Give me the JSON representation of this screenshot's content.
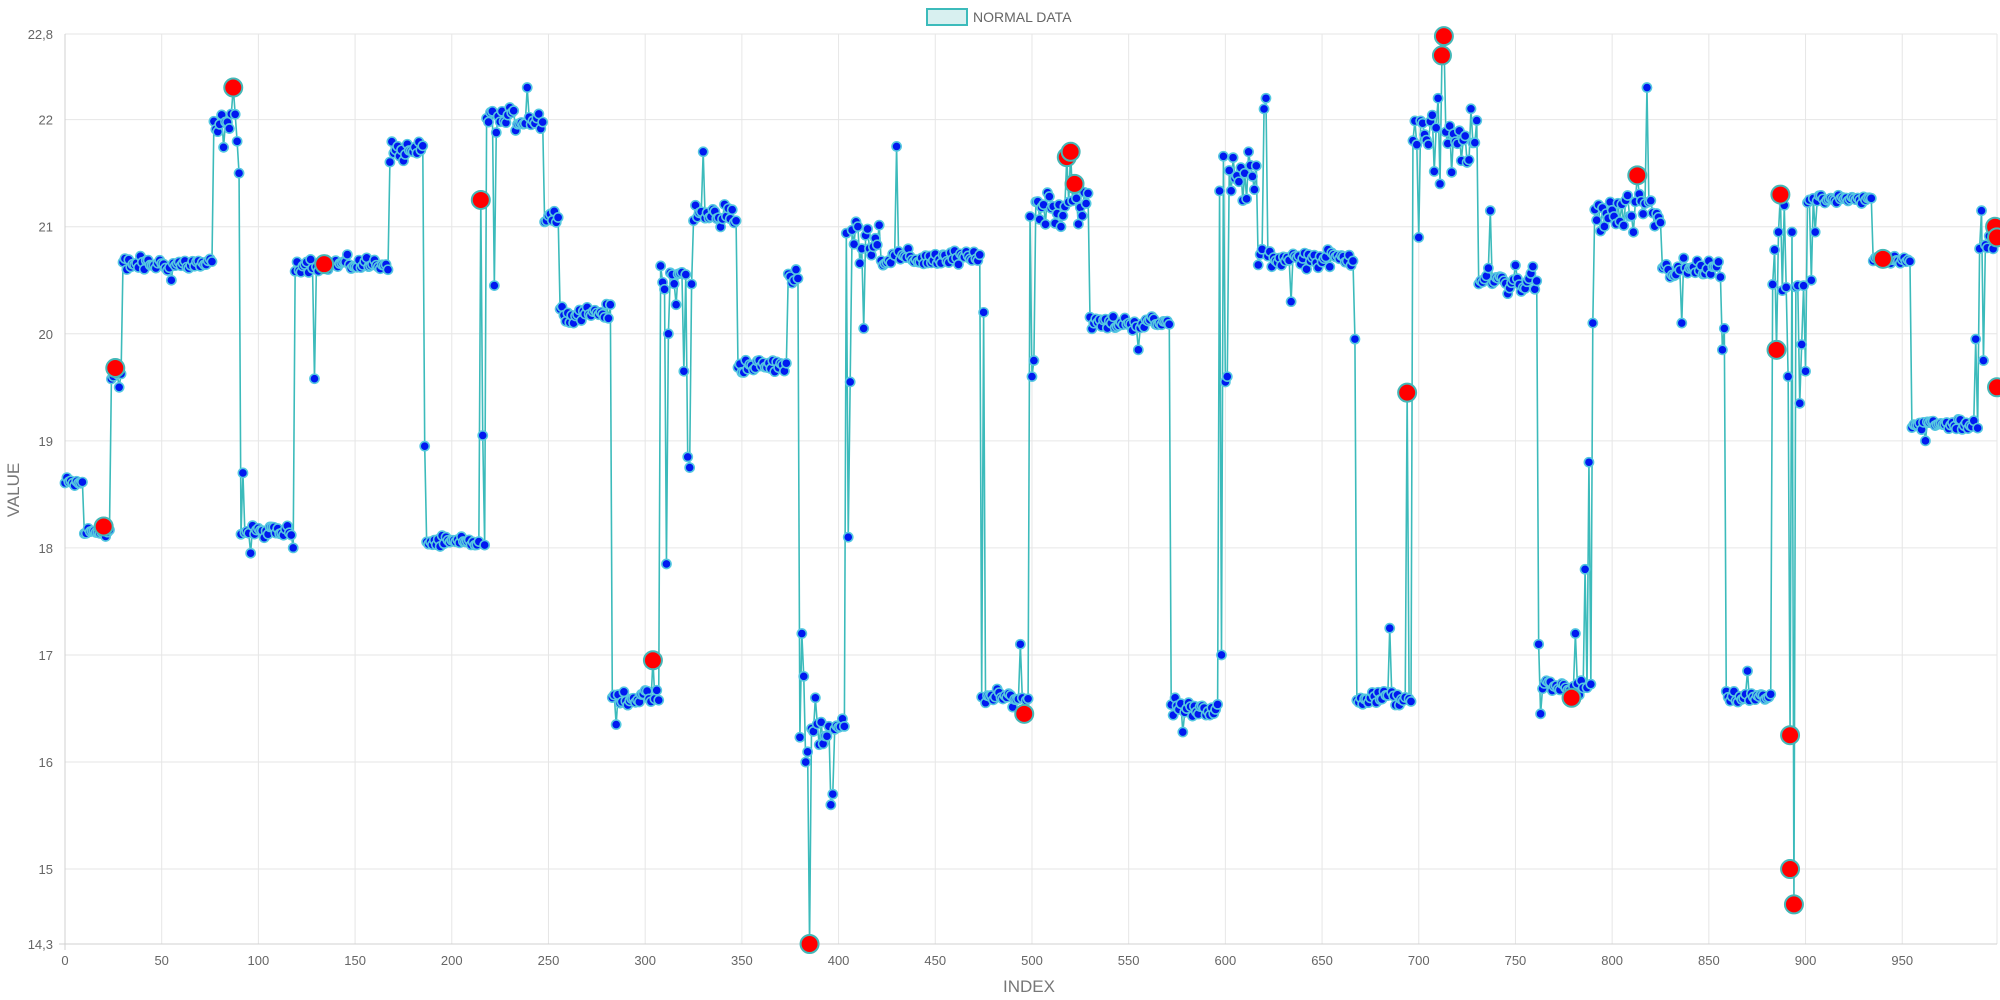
{
  "legend": {
    "label": "NORMAL DATA"
  },
  "colors": {
    "line": "#3cbbbb",
    "point_fill": "#0019f0",
    "point_stroke": "#55c8e0",
    "anomaly_fill": "#ff0000",
    "anomaly_stroke": "#43b8b8",
    "grid": "#e6e6e6",
    "legend_fill": "#d8f0f0"
  },
  "chart_data": {
    "type": "scatter",
    "title": "",
    "xlabel": "INDEX",
    "ylabel": "VALUE",
    "xlim": [
      0,
      999
    ],
    "ylim": [
      14.3,
      22.8
    ],
    "x_ticks": [
      0,
      50,
      100,
      150,
      200,
      250,
      300,
      350,
      400,
      450,
      500,
      550,
      600,
      650,
      700,
      750,
      800,
      850,
      900,
      950
    ],
    "y_ticks": [
      14.3,
      15,
      16,
      17,
      18,
      19,
      20,
      21,
      22,
      22.8
    ],
    "y_tick_labels": [
      "14,3",
      "15",
      "16",
      "17",
      "18",
      "19",
      "20",
      "21",
      "22",
      "22,8"
    ],
    "grid": true,
    "legend_position": "top-center",
    "segments": [
      {
        "start": 0,
        "end": 10,
        "level": 18.6,
        "noise": 0.1
      },
      {
        "start": 10,
        "end": 24,
        "level": 18.15,
        "noise": 0.07
      },
      {
        "start": 24,
        "end": 30,
        "level": 19.6,
        "noise": 0.2
      },
      {
        "start": 30,
        "end": 77,
        "level": 20.65,
        "noise": 0.1
      },
      {
        "start": 77,
        "end": 90,
        "level": 21.9,
        "noise": 0.25
      },
      {
        "start": 90,
        "end": 119,
        "level": 18.15,
        "noise": 0.08
      },
      {
        "start": 119,
        "end": 168,
        "level": 20.65,
        "noise": 0.1
      },
      {
        "start": 168,
        "end": 187,
        "level": 21.7,
        "noise": 0.15
      },
      {
        "start": 187,
        "end": 218,
        "level": 18.05,
        "noise": 0.08
      },
      {
        "start": 218,
        "end": 248,
        "level": 22.0,
        "noise": 0.15
      },
      {
        "start": 248,
        "end": 256,
        "level": 21.1,
        "noise": 0.15
      },
      {
        "start": 256,
        "end": 283,
        "level": 20.2,
        "noise": 0.1
      },
      {
        "start": 283,
        "end": 308,
        "level": 16.6,
        "noise": 0.1
      },
      {
        "start": 308,
        "end": 325,
        "level": 20.5,
        "noise": 0.3
      },
      {
        "start": 325,
        "end": 348,
        "level": 21.1,
        "noise": 0.2
      },
      {
        "start": 348,
        "end": 374,
        "level": 19.7,
        "noise": 0.1
      },
      {
        "start": 374,
        "end": 380,
        "level": 20.5,
        "noise": 0.1
      },
      {
        "start": 380,
        "end": 404,
        "level": 16.3,
        "noise": 0.35
      },
      {
        "start": 404,
        "end": 422,
        "level": 20.9,
        "noise": 0.3
      },
      {
        "start": 422,
        "end": 474,
        "level": 20.7,
        "noise": 0.12
      },
      {
        "start": 474,
        "end": 499,
        "level": 16.6,
        "noise": 0.1
      },
      {
        "start": 499,
        "end": 530,
        "level": 21.2,
        "noise": 0.25
      },
      {
        "start": 530,
        "end": 572,
        "level": 20.1,
        "noise": 0.1
      },
      {
        "start": 572,
        "end": 597,
        "level": 16.5,
        "noise": 0.1
      },
      {
        "start": 597,
        "end": 617,
        "level": 21.4,
        "noise": 0.4
      },
      {
        "start": 617,
        "end": 667,
        "level": 20.7,
        "noise": 0.12
      },
      {
        "start": 667,
        "end": 697,
        "level": 16.6,
        "noise": 0.12
      },
      {
        "start": 697,
        "end": 731,
        "level": 21.8,
        "noise": 0.35
      },
      {
        "start": 731,
        "end": 762,
        "level": 20.5,
        "noise": 0.25
      },
      {
        "start": 762,
        "end": 790,
        "level": 16.7,
        "noise": 0.12
      },
      {
        "start": 790,
        "end": 826,
        "level": 21.1,
        "noise": 0.3
      },
      {
        "start": 826,
        "end": 857,
        "level": 20.6,
        "noise": 0.15
      },
      {
        "start": 857,
        "end": 883,
        "level": 16.6,
        "noise": 0.08
      },
      {
        "start": 883,
        "end": 901,
        "level": 20.5,
        "noise": 0.4
      },
      {
        "start": 901,
        "end": 935,
        "level": 21.25,
        "noise": 0.06
      },
      {
        "start": 935,
        "end": 955,
        "level": 20.7,
        "noise": 0.08
      },
      {
        "start": 955,
        "end": 990,
        "level": 19.15,
        "noise": 0.08
      },
      {
        "start": 990,
        "end": 1000,
        "level": 20.8,
        "noise": 0.25
      }
    ],
    "overrides": [
      {
        "x": 28,
        "y": 19.5
      },
      {
        "x": 32,
        "y": 20.6
      },
      {
        "x": 55,
        "y": 20.5
      },
      {
        "x": 88,
        "y": 22.05
      },
      {
        "x": 90,
        "y": 21.5
      },
      {
        "x": 92,
        "y": 18.7
      },
      {
        "x": 96,
        "y": 17.95
      },
      {
        "x": 118,
        "y": 18.0
      },
      {
        "x": 129,
        "y": 19.58
      },
      {
        "x": 186,
        "y": 18.95
      },
      {
        "x": 216,
        "y": 19.05
      },
      {
        "x": 222,
        "y": 20.45
      },
      {
        "x": 239,
        "y": 22.3
      },
      {
        "x": 263,
        "y": 20.1
      },
      {
        "x": 285,
        "y": 16.35
      },
      {
        "x": 311,
        "y": 17.85
      },
      {
        "x": 312,
        "y": 20.0
      },
      {
        "x": 320,
        "y": 19.65
      },
      {
        "x": 322,
        "y": 18.85
      },
      {
        "x": 323,
        "y": 18.75
      },
      {
        "x": 330,
        "y": 21.7
      },
      {
        "x": 378,
        "y": 20.6
      },
      {
        "x": 381,
        "y": 17.2
      },
      {
        "x": 382,
        "y": 16.8
      },
      {
        "x": 385,
        "y": 15.6
      },
      {
        "x": 388,
        "y": 16.6
      },
      {
        "x": 396,
        "y": 15.6
      },
      {
        "x": 397,
        "y": 15.7
      },
      {
        "x": 405,
        "y": 18.1
      },
      {
        "x": 406,
        "y": 19.55
      },
      {
        "x": 413,
        "y": 20.05
      },
      {
        "x": 430,
        "y": 21.75
      },
      {
        "x": 475,
        "y": 20.2
      },
      {
        "x": 494,
        "y": 17.1
      },
      {
        "x": 500,
        "y": 19.6
      },
      {
        "x": 501,
        "y": 19.75
      },
      {
        "x": 515,
        "y": 21.0
      },
      {
        "x": 555,
        "y": 19.85
      },
      {
        "x": 574,
        "y": 16.6
      },
      {
        "x": 578,
        "y": 16.28
      },
      {
        "x": 598,
        "y": 17.0
      },
      {
        "x": 600,
        "y": 19.55
      },
      {
        "x": 601,
        "y": 19.6
      },
      {
        "x": 612,
        "y": 21.7
      },
      {
        "x": 620,
        "y": 22.1
      },
      {
        "x": 621,
        "y": 22.2
      },
      {
        "x": 634,
        "y": 20.3
      },
      {
        "x": 667,
        "y": 19.95
      },
      {
        "x": 685,
        "y": 17.25
      },
      {
        "x": 694,
        "y": 16.95
      },
      {
        "x": 700,
        "y": 20.9
      },
      {
        "x": 710,
        "y": 22.2
      },
      {
        "x": 711,
        "y": 21.4
      },
      {
        "x": 725,
        "y": 21.6
      },
      {
        "x": 737,
        "y": 21.15
      },
      {
        "x": 762,
        "y": 17.1
      },
      {
        "x": 763,
        "y": 16.45
      },
      {
        "x": 781,
        "y": 17.2
      },
      {
        "x": 786,
        "y": 17.8
      },
      {
        "x": 788,
        "y": 18.8
      },
      {
        "x": 790,
        "y": 20.1
      },
      {
        "x": 818,
        "y": 22.3
      },
      {
        "x": 836,
        "y": 20.1
      },
      {
        "x": 857,
        "y": 19.85
      },
      {
        "x": 858,
        "y": 20.05
      },
      {
        "x": 870,
        "y": 16.85
      },
      {
        "x": 886,
        "y": 20.95
      },
      {
        "x": 889,
        "y": 21.2
      },
      {
        "x": 891,
        "y": 19.6
      },
      {
        "x": 893,
        "y": 20.95
      },
      {
        "x": 897,
        "y": 19.35
      },
      {
        "x": 898,
        "y": 19.9
      },
      {
        "x": 900,
        "y": 19.65
      },
      {
        "x": 903,
        "y": 20.5
      },
      {
        "x": 905,
        "y": 20.95
      },
      {
        "x": 962,
        "y": 19.0
      },
      {
        "x": 979,
        "y": 19.2
      },
      {
        "x": 988,
        "y": 19.95
      },
      {
        "x": 991,
        "y": 21.15
      },
      {
        "x": 992,
        "y": 19.75
      },
      {
        "x": 996,
        "y": 21.0
      }
    ],
    "anomalies": [
      {
        "x": 20,
        "y": 18.2
      },
      {
        "x": 26,
        "y": 19.68
      },
      {
        "x": 87,
        "y": 22.3
      },
      {
        "x": 215,
        "y": 21.25
      },
      {
        "x": 134,
        "y": 20.65
      },
      {
        "x": 304,
        "y": 16.95
      },
      {
        "x": 385,
        "y": 14.3
      },
      {
        "x": 496,
        "y": 16.45
      },
      {
        "x": 518,
        "y": 21.65
      },
      {
        "x": 520,
        "y": 21.7
      },
      {
        "x": 522,
        "y": 21.4
      },
      {
        "x": 694,
        "y": 19.45
      },
      {
        "x": 712,
        "y": 22.6
      },
      {
        "x": 713,
        "y": 22.78
      },
      {
        "x": 779,
        "y": 16.6
      },
      {
        "x": 813,
        "y": 21.48
      },
      {
        "x": 885,
        "y": 19.85
      },
      {
        "x": 887,
        "y": 21.3
      },
      {
        "x": 892,
        "y": 16.25
      },
      {
        "x": 892,
        "y": 15.0
      },
      {
        "x": 894,
        "y": 14.67
      },
      {
        "x": 940,
        "y": 20.7
      },
      {
        "x": 998,
        "y": 21.0
      },
      {
        "x": 999,
        "y": 20.9
      },
      {
        "x": 999,
        "y": 19.5
      }
    ]
  }
}
